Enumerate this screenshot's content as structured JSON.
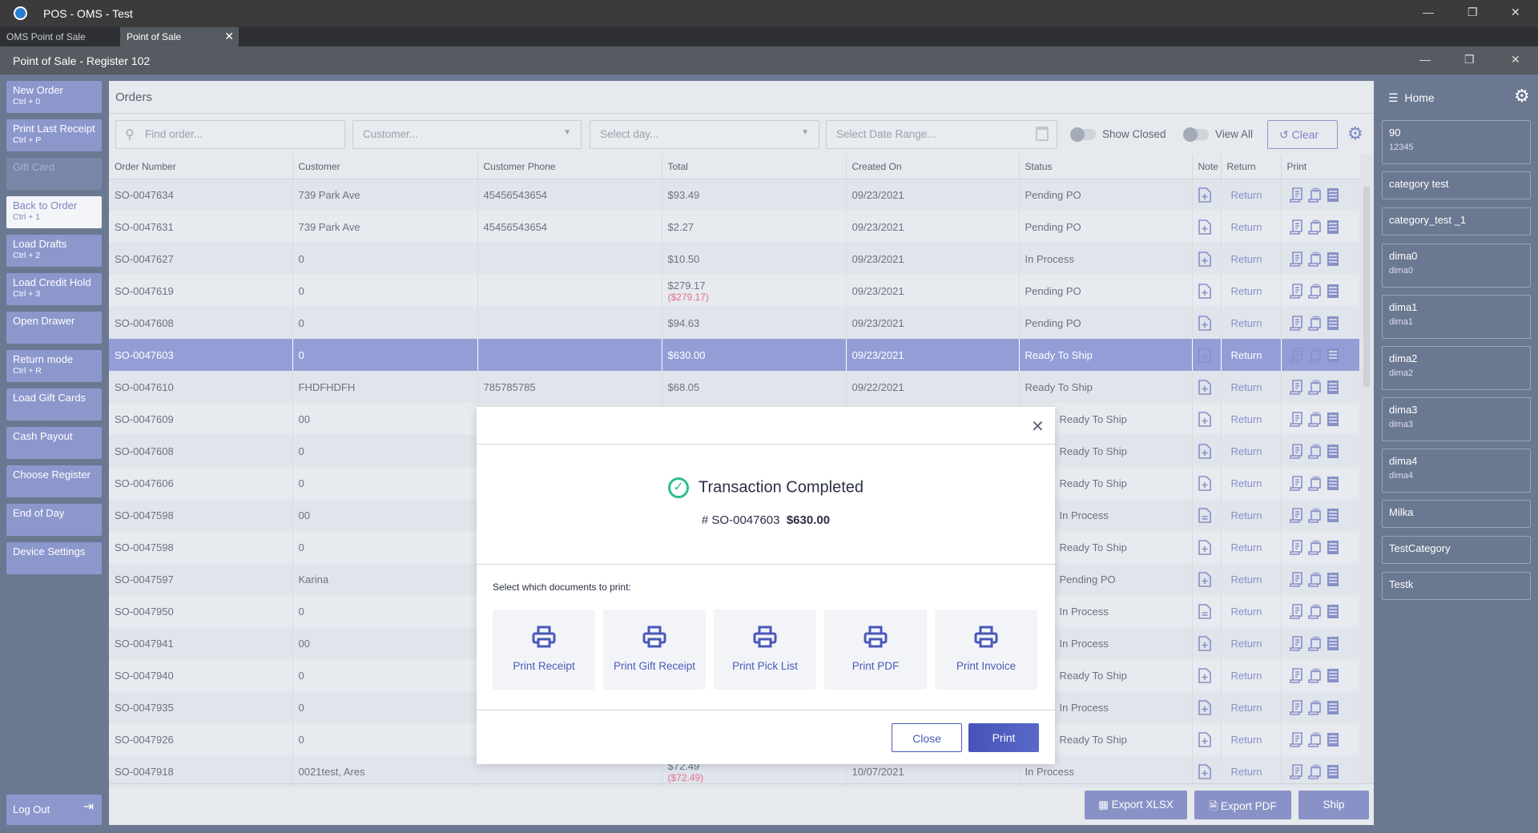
{
  "app_title": "POS - OMS - Test",
  "tabs": [
    {
      "label": "OMS Point of Sale"
    },
    {
      "label": "Point of Sale"
    }
  ],
  "window_title": "Point of Sale - Register 102",
  "sidebar": [
    {
      "label": "New Order",
      "shortcut": "Ctrl + 0"
    },
    {
      "label": "Print Last Receipt",
      "shortcut": "Ctrl + P"
    },
    {
      "label": "Gift Card",
      "shortcut": ""
    },
    {
      "label": "Back to Order",
      "shortcut": "Ctrl + 1"
    },
    {
      "label": "Load Drafts",
      "shortcut": "Ctrl + 2"
    },
    {
      "label": "Load Credit Hold",
      "shortcut": "Ctrl + 3"
    },
    {
      "label": "Open Drawer",
      "shortcut": ""
    },
    {
      "label": "Return mode",
      "shortcut": "Ctrl + R"
    },
    {
      "label": "Load Gift Cards",
      "shortcut": ""
    },
    {
      "label": "Cash Payout",
      "shortcut": ""
    },
    {
      "label": "Choose Register",
      "shortcut": ""
    },
    {
      "label": "End of Day",
      "shortcut": ""
    },
    {
      "label": "Device Settings",
      "shortcut": ""
    }
  ],
  "logout_label": "Log Out",
  "orders": {
    "title": "Orders",
    "find_placeholder": "Find order...",
    "customer_placeholder": "Customer...",
    "day_placeholder": "Select day...",
    "date_range_placeholder": "Select Date Range...",
    "show_closed": "Show Closed",
    "view_all": "View All",
    "clear": "Clear",
    "columns": [
      "Order Number",
      "Customer",
      "Customer Phone",
      "Total",
      "Created On",
      "Status",
      "Note",
      "Return",
      "Print"
    ],
    "return_label": "Return",
    "rows": [
      {
        "num": "SO-0047634",
        "cust": "739 Park Ave",
        "phone": "45456543654",
        "total": "$93.49",
        "neg": "",
        "date": "09/23/2021",
        "status": "Pending PO",
        "note": "add"
      },
      {
        "num": "SO-0047631",
        "cust": "739 Park Ave",
        "phone": "45456543654",
        "total": "$2.27",
        "neg": "",
        "date": "09/23/2021",
        "status": "Pending PO",
        "note": "add"
      },
      {
        "num": "SO-0047627",
        "cust": "0",
        "phone": "",
        "total": "$10.50",
        "neg": "",
        "date": "09/23/2021",
        "status": "In Process",
        "note": "add"
      },
      {
        "num": "SO-0047619",
        "cust": "0",
        "phone": "",
        "total": "$279.17",
        "neg": "($279.17)",
        "date": "09/23/2021",
        "status": "Pending PO",
        "note": "add"
      },
      {
        "num": "SO-0047608",
        "cust": "0",
        "phone": "",
        "total": "$94.63",
        "neg": "",
        "date": "09/23/2021",
        "status": "Pending PO",
        "note": "add"
      },
      {
        "num": "SO-0047603",
        "cust": "0",
        "phone": "",
        "total": "$630.00",
        "neg": "",
        "date": "09/23/2021",
        "status": "Ready To Ship",
        "note": "add",
        "selected": true
      },
      {
        "num": "SO-0047610",
        "cust": "FHDFHDFH",
        "phone": "785785785",
        "total": "$68.05",
        "neg": "",
        "date": "09/22/2021",
        "status": "Ready To Ship",
        "note": "add"
      },
      {
        "num": "SO-0047609",
        "cust": "00",
        "phone": "",
        "total": "",
        "neg": "",
        "date": "",
        "status": "Ready To Ship",
        "note": "add"
      },
      {
        "num": "SO-0047608",
        "cust": "0",
        "phone": "",
        "total": "",
        "neg": "",
        "date": "",
        "status": "Ready To Ship",
        "note": "add"
      },
      {
        "num": "SO-0047606",
        "cust": "0",
        "phone": "",
        "total": "",
        "neg": "",
        "date": "",
        "status": "Ready To Ship",
        "note": "add"
      },
      {
        "num": "SO-0047598",
        "cust": "00",
        "phone": "",
        "total": "",
        "neg": "",
        "date": "",
        "status": "In Process",
        "note": "lines"
      },
      {
        "num": "SO-0047598",
        "cust": "0",
        "phone": "",
        "total": "",
        "neg": "",
        "date": "",
        "status": "Ready To Ship",
        "note": "add"
      },
      {
        "num": "SO-0047597",
        "cust": "Karina",
        "phone": "",
        "total": "",
        "neg": "",
        "date": "",
        "status": "Pending PO",
        "note": "add"
      },
      {
        "num": "SO-0047950",
        "cust": "0",
        "phone": "",
        "total": "",
        "neg": "",
        "date": "",
        "status": "In Process",
        "note": "lines"
      },
      {
        "num": "SO-0047941",
        "cust": "00",
        "phone": "",
        "total": "",
        "neg": "",
        "date": "",
        "status": "In Process",
        "note": "add"
      },
      {
        "num": "SO-0047940",
        "cust": "0",
        "phone": "",
        "total": "",
        "neg": "",
        "date": "",
        "status": "Ready To Ship",
        "note": "add"
      },
      {
        "num": "SO-0047935",
        "cust": "0",
        "phone": "",
        "total": "",
        "neg": "",
        "date": "",
        "status": "In Process",
        "note": "add"
      },
      {
        "num": "SO-0047926",
        "cust": "0",
        "phone": "",
        "total": "",
        "neg": "",
        "date": "",
        "status": "Ready To Ship",
        "note": "add"
      },
      {
        "num": "SO-0047918",
        "cust": "0021test, Ares",
        "phone": "",
        "total": "$72.49",
        "neg": "($72.49)",
        "date": "10/07/2021",
        "status": "In Process",
        "note": "add"
      }
    ],
    "export_xlsx": "Export XLSX",
    "export_pdf": "Export PDF",
    "ship": "Ship"
  },
  "right_panel": {
    "title": "Home",
    "items": [
      {
        "name": "90",
        "sub": "12345"
      },
      {
        "name": "category test",
        "sub": ""
      },
      {
        "name": "category_test _1",
        "sub": ""
      },
      {
        "name": "dima0",
        "sub": "dima0"
      },
      {
        "name": "dima1",
        "sub": "dima1"
      },
      {
        "name": "dima2",
        "sub": "dima2"
      },
      {
        "name": "dima3",
        "sub": "dima3"
      },
      {
        "name": "dima4",
        "sub": "dima4"
      },
      {
        "name": "Milka",
        "sub": ""
      },
      {
        "name": "TestCategory",
        "sub": ""
      },
      {
        "name": "Testk",
        "sub": ""
      }
    ]
  },
  "modal": {
    "title": "Transaction Completed",
    "order": "# SO-0047603",
    "amount": "$630.00",
    "prompt": "Select which documents to print:",
    "options": [
      "Print Receipt",
      "Print Gift Receipt",
      "Print Pick List",
      "Print PDF",
      "Print Invoice"
    ],
    "close": "Close",
    "print": "Print"
  },
  "colors": {
    "accent": "#4a58b8",
    "button": "#8c97cc",
    "selected_row": "#939ed6",
    "success": "#2fbf8a",
    "negative": "#e0708a"
  }
}
